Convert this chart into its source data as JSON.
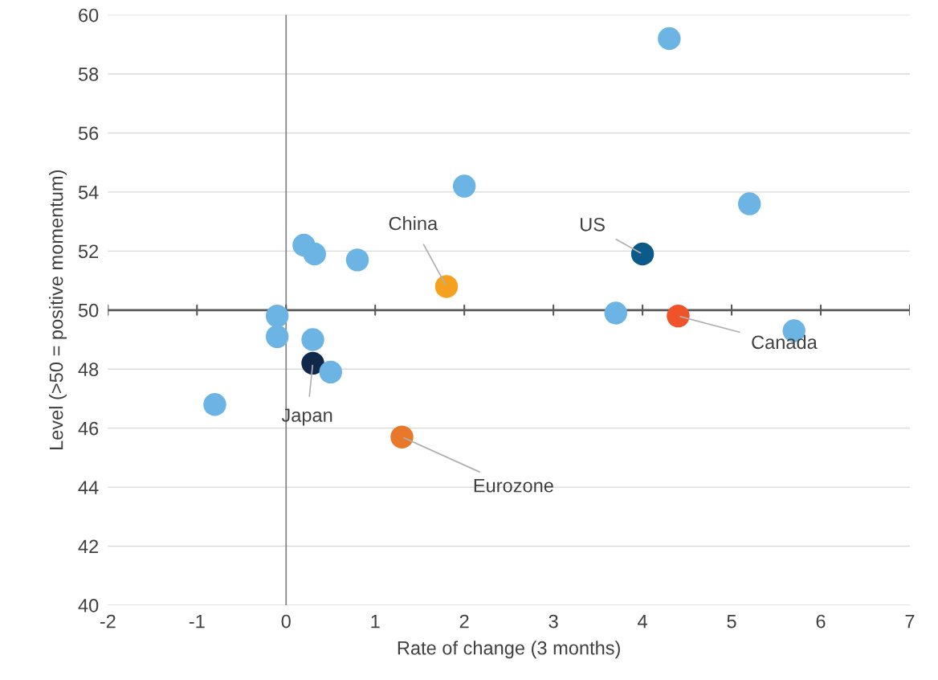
{
  "chart_data": {
    "type": "scatter",
    "xlabel": "Rate of change (3 months)",
    "ylabel": "Level (>50 = positive momentum)",
    "x": [
      4.3,
      5.2,
      2.0,
      0.2,
      0.32,
      0.8,
      1.8,
      4.0,
      3.7,
      4.4,
      5.7,
      -0.1,
      -0.1,
      0.3,
      0.3,
      0.5,
      -0.8,
      1.3
    ],
    "series": [
      {
        "values": [
          59.2,
          53.6,
          54.2,
          52.2,
          51.9,
          51.7,
          50.8,
          51.9,
          49.9,
          49.8,
          49.3,
          49.8,
          49.1,
          49.0,
          48.2,
          47.9,
          46.8,
          45.7
        ],
        "colors": [
          "#6cb4e4",
          "#6cb4e4",
          "#6cb4e4",
          "#6cb4e4",
          "#6cb4e4",
          "#6cb4e4",
          "#f5a01f",
          "#0b5a8a",
          "#6cb4e4",
          "#f0522a",
          "#6cb4e4",
          "#6cb4e4",
          "#6cb4e4",
          "#6cb4e4",
          "#12284a",
          "#6cb4e4",
          "#6cb4e4",
          "#e8792a"
        ]
      }
    ],
    "xlim": [
      -2,
      7
    ],
    "xticks": [
      -2,
      -1,
      0,
      1,
      2,
      3,
      4,
      5,
      6,
      7
    ],
    "ylim": [
      40,
      60
    ],
    "yticks": [
      40,
      42,
      44,
      46,
      48,
      50,
      52,
      54,
      56,
      58,
      60
    ],
    "grid": "y",
    "marker": "circle",
    "ref_lines": [
      {
        "axis": "x",
        "value": 0,
        "color": "#7f7f7f"
      },
      {
        "axis": "y",
        "value": 50,
        "color": "#595959"
      }
    ],
    "annotations": [
      {
        "text": "China",
        "x": 1.8,
        "y": 50.8
      },
      {
        "text": "US",
        "x": 4.0,
        "y": 51.9
      },
      {
        "text": "Canada",
        "x": 4.4,
        "y": 49.8
      },
      {
        "text": "Japan",
        "x": 0.3,
        "y": 48.2
      },
      {
        "text": "Eurozone",
        "x": 1.3,
        "y": 45.7
      }
    ]
  }
}
